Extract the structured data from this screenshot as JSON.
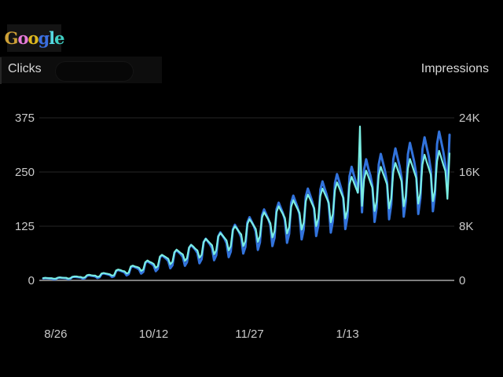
{
  "logo": {
    "text": "Google",
    "letters": [
      {
        "ch": "G",
        "color": "#cfa136"
      },
      {
        "ch": "o",
        "color": "#e67ad9"
      },
      {
        "ch": "o",
        "color": "#ddb81f"
      },
      {
        "ch": "g",
        "color": "#3b6fe0"
      },
      {
        "ch": "l",
        "color": "#56d9e2"
      },
      {
        "ch": "e",
        "color": "#3fcfc4"
      }
    ]
  },
  "header": {
    "clicks_label": "Clicks",
    "impressions_label": "Impressions"
  },
  "colors": {
    "background": "#000000",
    "label_text": "#c9c9c9",
    "grid_faint": "#262626",
    "baseline": "#7d7d7d",
    "clicks_line": "#7beee2",
    "impressions_line": "#3273dc"
  },
  "chart_data": {
    "type": "line",
    "title": "",
    "grid": true,
    "legend_position": "top",
    "x_axis": {
      "labels": [
        "8/26",
        "10/12",
        "11/27",
        "1/13"
      ],
      "label_day_index": [
        6,
        53,
        99,
        146
      ]
    },
    "y_left": {
      "title": "Clicks",
      "ticks": [
        "375",
        "250",
        "125",
        "0"
      ],
      "tick_values": [
        375,
        250,
        125,
        0
      ],
      "min": 0,
      "max": 375
    },
    "y_right": {
      "title": "Impressions",
      "ticks": [
        "24K",
        "16K",
        "8K",
        "0"
      ],
      "tick_values": [
        24000,
        16000,
        8000,
        0
      ],
      "min": 0,
      "max": 24000
    },
    "series": [
      {
        "name": "Impressions",
        "axis": "right",
        "color": "#3273dc",
        "width": 3,
        "values": [
          303,
          330,
          308,
          286,
          256,
          160,
          198,
          366,
          400,
          373,
          346,
          310,
          193,
          240,
          494,
          539,
          503,
          467,
          418,
          260,
          323,
          685,
          748,
          698,
          648,
          579,
          361,
          449,
          944,
          1030,
          961,
          892,
          798,
          498,
          618,
          1398,
          1525,
          1424,
          1322,
          1182,
          737,
          915,
          1924,
          2099,
          1959,
          1819,
          1627,
          1014,
          1259,
          2589,
          2825,
          2637,
          2448,
          2189,
          1365,
          1695,
          3398,
          3707,
          3460,
          3213,
          2873,
          1792,
          2224,
          4089,
          4460,
          4163,
          3866,
          3457,
          2156,
          2676,
          4792,
          5227,
          4879,
          4530,
          4051,
          2526,
          3136,
          5641,
          6154,
          5743,
          5333,
          4769,
          2974,
          3692,
          6505,
          7097,
          6624,
          6151,
          5500,
          3430,
          4258,
          7521,
          8204,
          7657,
          7111,
          6358,
          3966,
          4923,
          8553,
          9330,
          8708,
          8086,
          7231,
          4510,
          5598,
          9602,
          10475,
          9777,
          9078,
          8118,
          5063,
          6285,
          10527,
          11484,
          10718,
          9953,
          8900,
          5551,
          6890,
          11468,
          12510,
          11676,
          10842,
          9695,
          6047,
          7506,
          12422,
          13552,
          12648,
          11745,
          10503,
          6550,
          8131,
          13391,
          14609,
          13635,
          12661,
          11322,
          7061,
          8765,
          14375,
          15682,
          14636,
          13591,
          12153,
          7579,
          9409,
          15374,
          16771,
          15653,
          14535,
          12998,
          18200,
          10063,
          16386,
          17875,
          16535,
          15492,
          13853,
          8640,
          10725,
          17116,
          18672,
          17427,
          16182,
          14471,
          9025,
          11203,
          17855,
          19478,
          18180,
          16881,
          15096,
          9415,
          11687,
          18604,
          20296,
          18943,
          17590,
          15729,
          9810,
          12177,
          19362,
          21122,
          19714,
          18306,
          16370,
          10209,
          12673,
          20131,
          21961,
          20497,
          19033,
          17020,
          13500,
          21500
        ]
      },
      {
        "name": "Clicks",
        "axis": "left",
        "color": "#7beee2",
        "width": 2.2,
        "values": [
          5,
          6,
          5,
          5,
          5,
          4,
          4,
          6,
          7,
          6,
          6,
          6,
          4,
          5,
          8,
          9,
          9,
          8,
          8,
          6,
          7,
          12,
          13,
          12,
          11,
          11,
          8,
          9,
          16,
          17,
          16,
          15,
          14,
          11,
          12,
          23,
          25,
          24,
          22,
          21,
          16,
          18,
          32,
          34,
          32,
          31,
          29,
          22,
          25,
          42,
          46,
          43,
          41,
          38,
          29,
          33,
          55,
          59,
          56,
          53,
          50,
          37,
          43,
          65,
          71,
          67,
          63,
          60,
          45,
          51,
          76,
          82,
          78,
          73,
          69,
          52,
          59,
          88,
          96,
          91,
          86,
          81,
          60,
          69,
          101,
          109,
          104,
          98,
          92,
          69,
          79,
          116,
          125,
          119,
          112,
          106,
          79,
          90,
          130,
          141,
          134,
          126,
          119,
          89,
          102,
          145,
          157,
          149,
          141,
          132,
          99,
          113,
          158,
          171,
          162,
          153,
          144,
          108,
          123,
          170,
          185,
          175,
          165,
          156,
          117,
          133,
          183,
          198,
          188,
          177,
          167,
          125,
          143,
          195,
          212,
          201,
          190,
          179,
          134,
          153,
          208,
          226,
          214,
          202,
          190,
          143,
          162,
          221,
          239,
          227,
          214,
          202,
          355,
          172,
          233,
          253,
          240,
          226,
          213,
          160,
          182,
          242,
          262,
          248,
          235,
          221,
          166,
          189,
          250,
          271,
          257,
          243,
          228,
          171,
          195,
          258,
          280,
          266,
          251,
          236,
          177,
          202,
          267,
          290,
          274,
          259,
          244,
          183,
          208,
          275,
          299,
          283,
          267,
          252,
          188,
          293
        ]
      }
    ]
  }
}
